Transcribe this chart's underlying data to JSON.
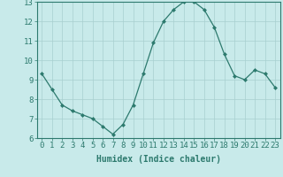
{
  "x": [
    0,
    1,
    2,
    3,
    4,
    5,
    6,
    7,
    8,
    9,
    10,
    11,
    12,
    13,
    14,
    15,
    16,
    17,
    18,
    19,
    20,
    21,
    22,
    23
  ],
  "y": [
    9.3,
    8.5,
    7.7,
    7.4,
    7.2,
    7.0,
    6.6,
    6.2,
    6.7,
    7.7,
    9.3,
    10.9,
    12.0,
    12.6,
    13.0,
    13.0,
    12.6,
    11.7,
    10.3,
    9.2,
    9.0,
    9.5,
    9.3,
    8.6
  ],
  "line_color": "#2d7a6e",
  "marker": "D",
  "marker_size": 2.0,
  "bg_color": "#c8eaea",
  "grid_color": "#a8cfcf",
  "xlabel": "Humidex (Indice chaleur)",
  "xlim": [
    -0.5,
    23.5
  ],
  "ylim": [
    6,
    13
  ],
  "yticks": [
    6,
    7,
    8,
    9,
    10,
    11,
    12,
    13
  ],
  "xticks": [
    0,
    1,
    2,
    3,
    4,
    5,
    6,
    7,
    8,
    9,
    10,
    11,
    12,
    13,
    14,
    15,
    16,
    17,
    18,
    19,
    20,
    21,
    22,
    23
  ],
  "xlabel_fontsize": 7,
  "tick_fontsize": 6.5
}
